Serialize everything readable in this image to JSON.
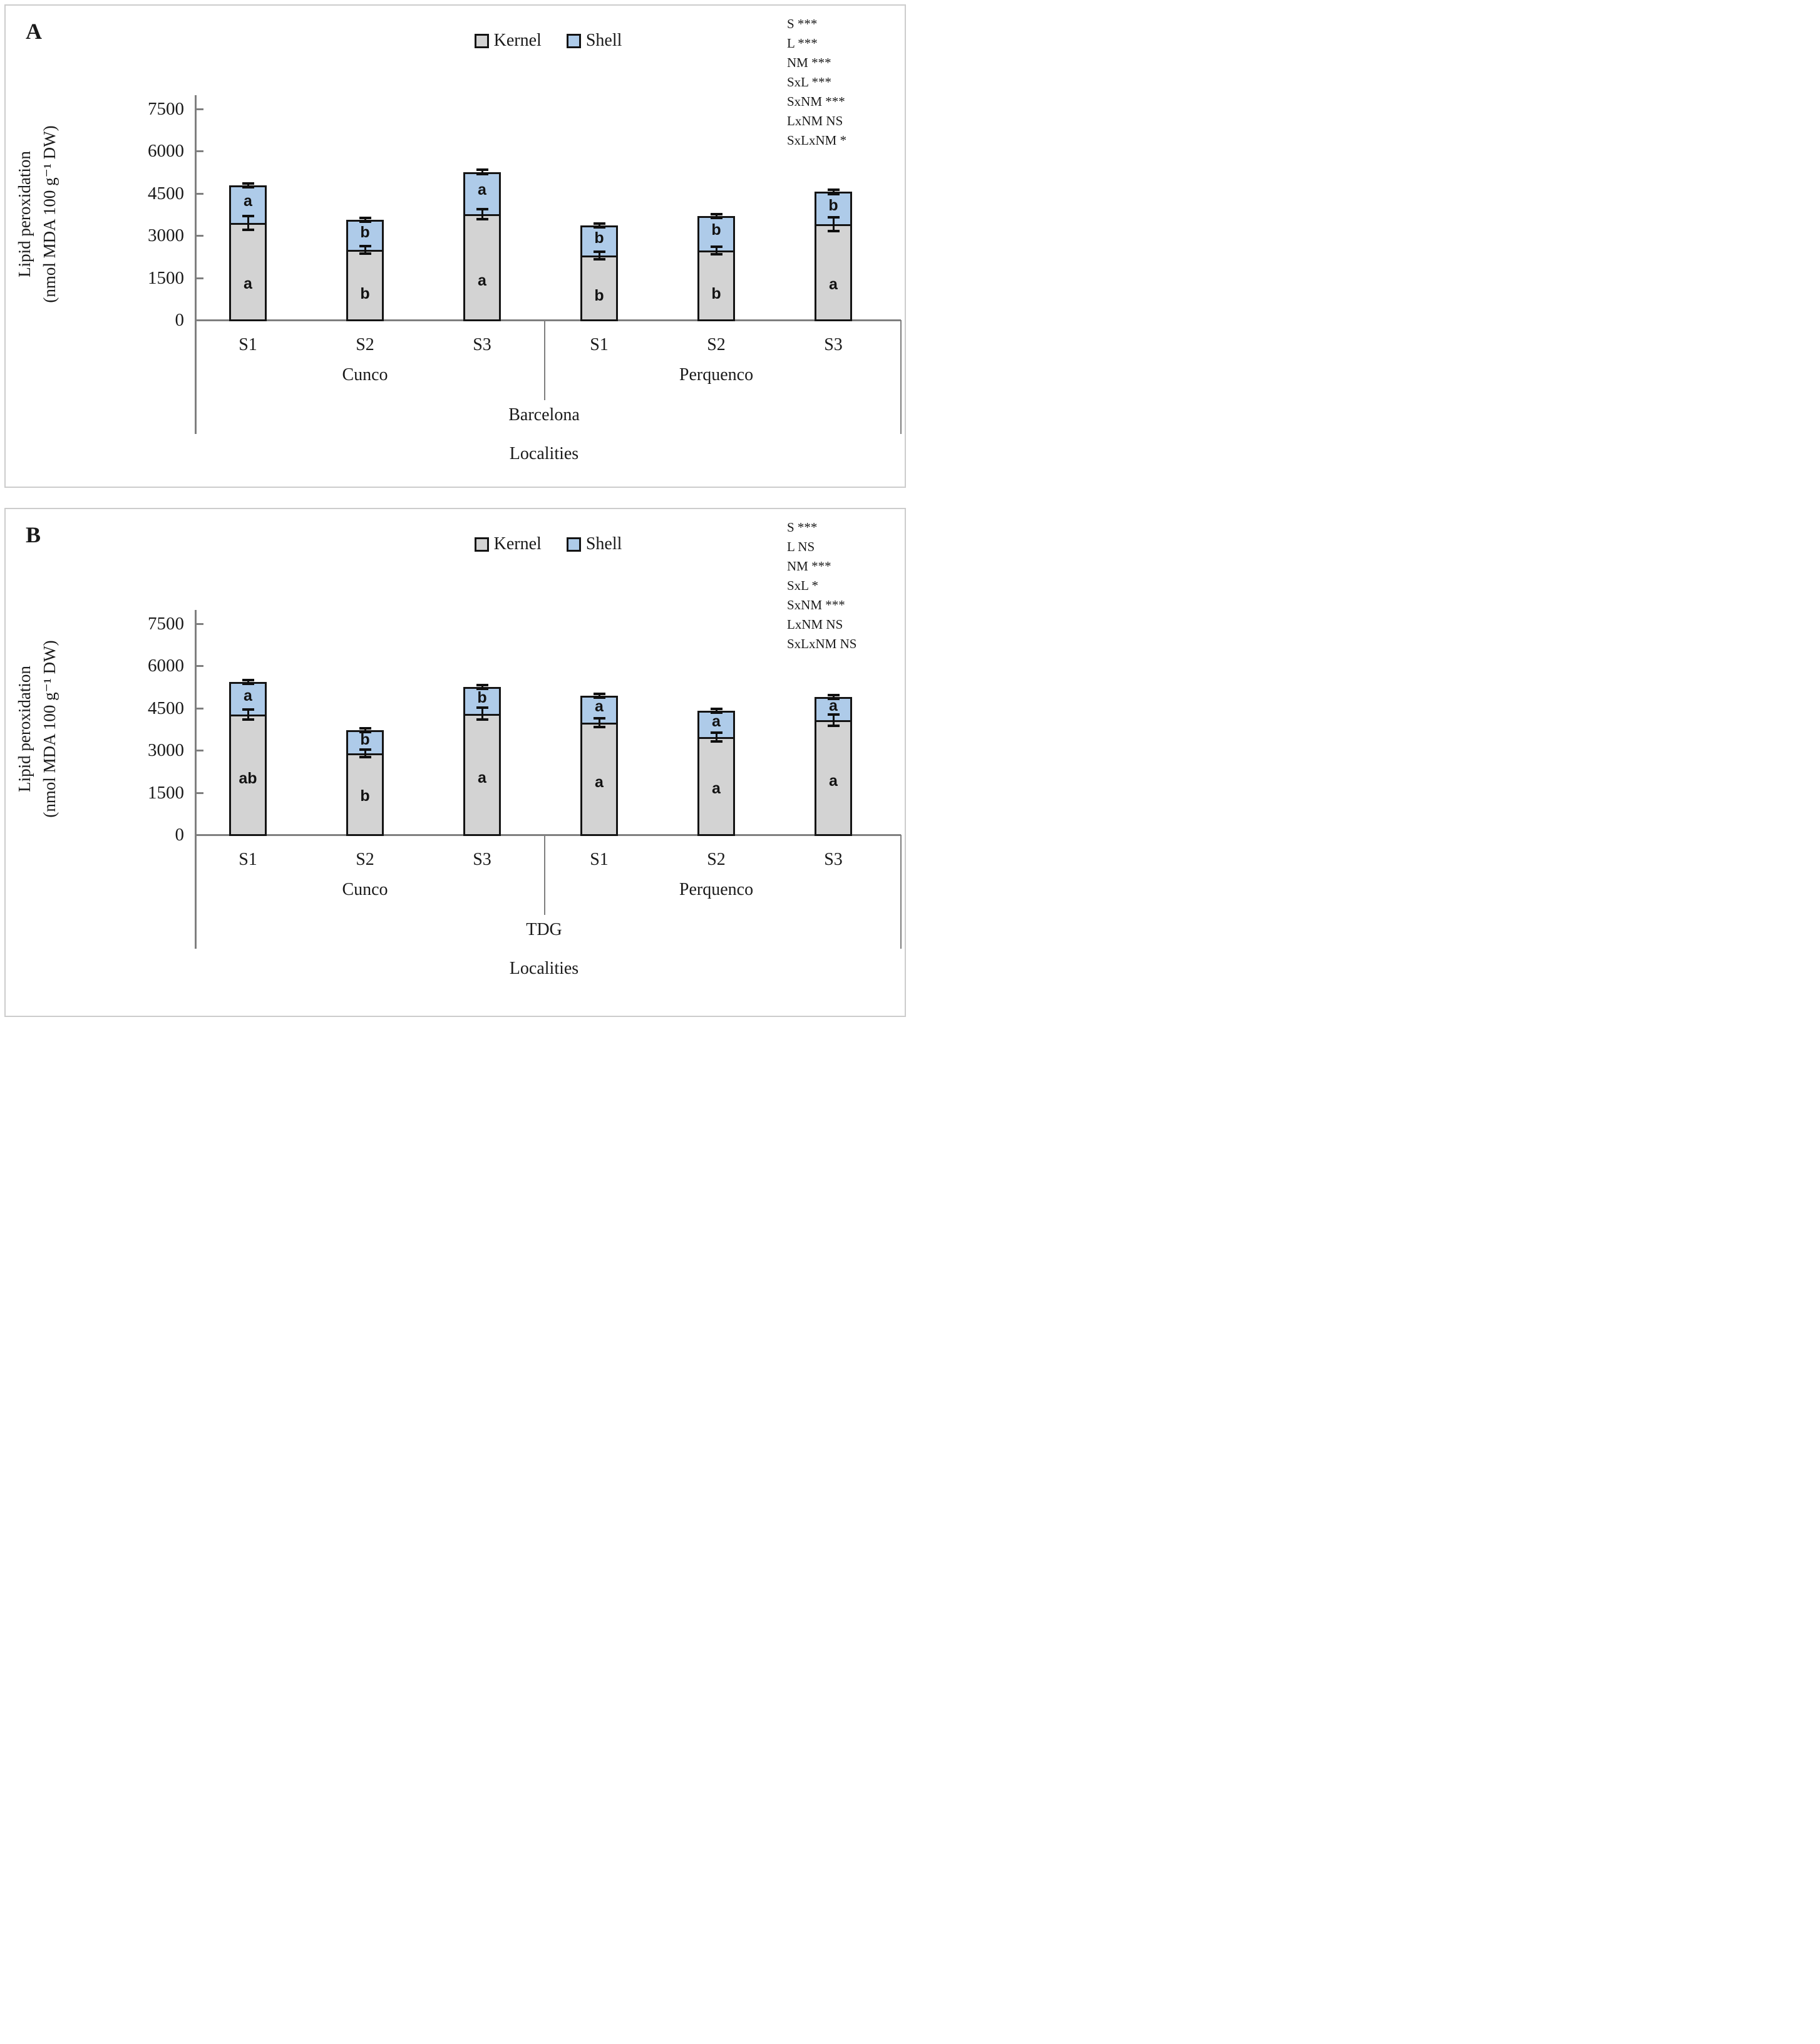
{
  "figure": {
    "y_axis_title_line1": "Lipid peroxidation",
    "y_axis_title_line2": "(nmol MDA 100 g⁻¹ DW)",
    "x_axis_title": "Localities",
    "y_ticks": [
      0,
      1500,
      3000,
      4500,
      6000,
      7500
    ],
    "seasons": [
      "S1",
      "S2",
      "S3"
    ],
    "localities": [
      "Cunco",
      "Perquenco"
    ],
    "legend": [
      {
        "label": "Kernel",
        "color": "#d3d3d3"
      },
      {
        "label": "Shell",
        "color": "#aecbe9"
      }
    ],
    "colors": {
      "kernel_fill": "#d3d3d3",
      "shell_fill": "#aecbe9",
      "bar_border": "#141414",
      "axis_gray": "#7f7f7f"
    }
  },
  "chart_data": [
    {
      "type": "bar",
      "stacked": true,
      "panel_letter": "A",
      "group_label": "Barcelona",
      "xlabel": "Localities",
      "ylabel": "Lipid peroxidation (nmol MDA 100 g⁻¹ DW)",
      "ylim": [
        0,
        7500
      ],
      "yticks": [
        0,
        1500,
        3000,
        4500,
        6000,
        7500
      ],
      "legend_position": "top-center",
      "grid": false,
      "categories": [
        "Cunco S1",
        "Cunco S2",
        "Cunco S3",
        "Perquenco S1",
        "Perquenco S2",
        "Perquenco S3"
      ],
      "series": [
        {
          "name": "Kernel",
          "values": [
            3450,
            2480,
            3750,
            2300,
            2470,
            3400
          ],
          "letters": [
            "a",
            "b",
            "a",
            "b",
            "b",
            "a"
          ],
          "errors": [
            250,
            120,
            180,
            130,
            120,
            250
          ]
        },
        {
          "name": "Shell",
          "values": [
            1330,
            1080,
            1500,
            1050,
            1230,
            1150
          ],
          "letters": [
            "a",
            "b",
            "a",
            "b",
            "b",
            "b"
          ]
        }
      ],
      "totals": [
        4780,
        3560,
        5250,
        3350,
        3700,
        4550
      ],
      "total_errors": [
        60,
        60,
        80,
        70,
        50,
        80
      ],
      "stats": [
        "S ***",
        "L ***",
        "NM ***",
        "SxL ***",
        "SxNM ***",
        "LxNM NS",
        "SxLxNM *"
      ]
    },
    {
      "type": "bar",
      "stacked": true,
      "panel_letter": "B",
      "group_label": "TDG",
      "xlabel": "Localities",
      "ylabel": "Lipid peroxidation (nmol MDA 100 g⁻¹ DW)",
      "ylim": [
        0,
        7500
      ],
      "yticks": [
        0,
        1500,
        3000,
        4500,
        6000,
        7500
      ],
      "legend_position": "top-center",
      "grid": false,
      "categories": [
        "Cunco S1",
        "Cunco S2",
        "Cunco S3",
        "Perquenco S1",
        "Perquenco S2",
        "Perquenco S3"
      ],
      "series": [
        {
          "name": "Kernel",
          "values": [
            4260,
            2880,
            4300,
            3980,
            3470,
            4070
          ],
          "letters": [
            "ab",
            "b",
            "a",
            "a",
            "a",
            "a"
          ],
          "errors": [
            180,
            120,
            220,
            150,
            150,
            200
          ]
        },
        {
          "name": "Shell",
          "values": [
            1160,
            830,
            950,
            960,
            930,
            830
          ],
          "letters": [
            "a",
            "b",
            "b",
            "a",
            "a",
            "a"
          ]
        }
      ],
      "totals": [
        5420,
        3710,
        5250,
        4940,
        4400,
        4900
      ],
      "total_errors": [
        60,
        60,
        70,
        70,
        50,
        50
      ],
      "stats": [
        "S ***",
        "L NS",
        "NM ***",
        "SxL *",
        "SxNM ***",
        "LxNM NS",
        "SxLxNM NS"
      ]
    }
  ]
}
